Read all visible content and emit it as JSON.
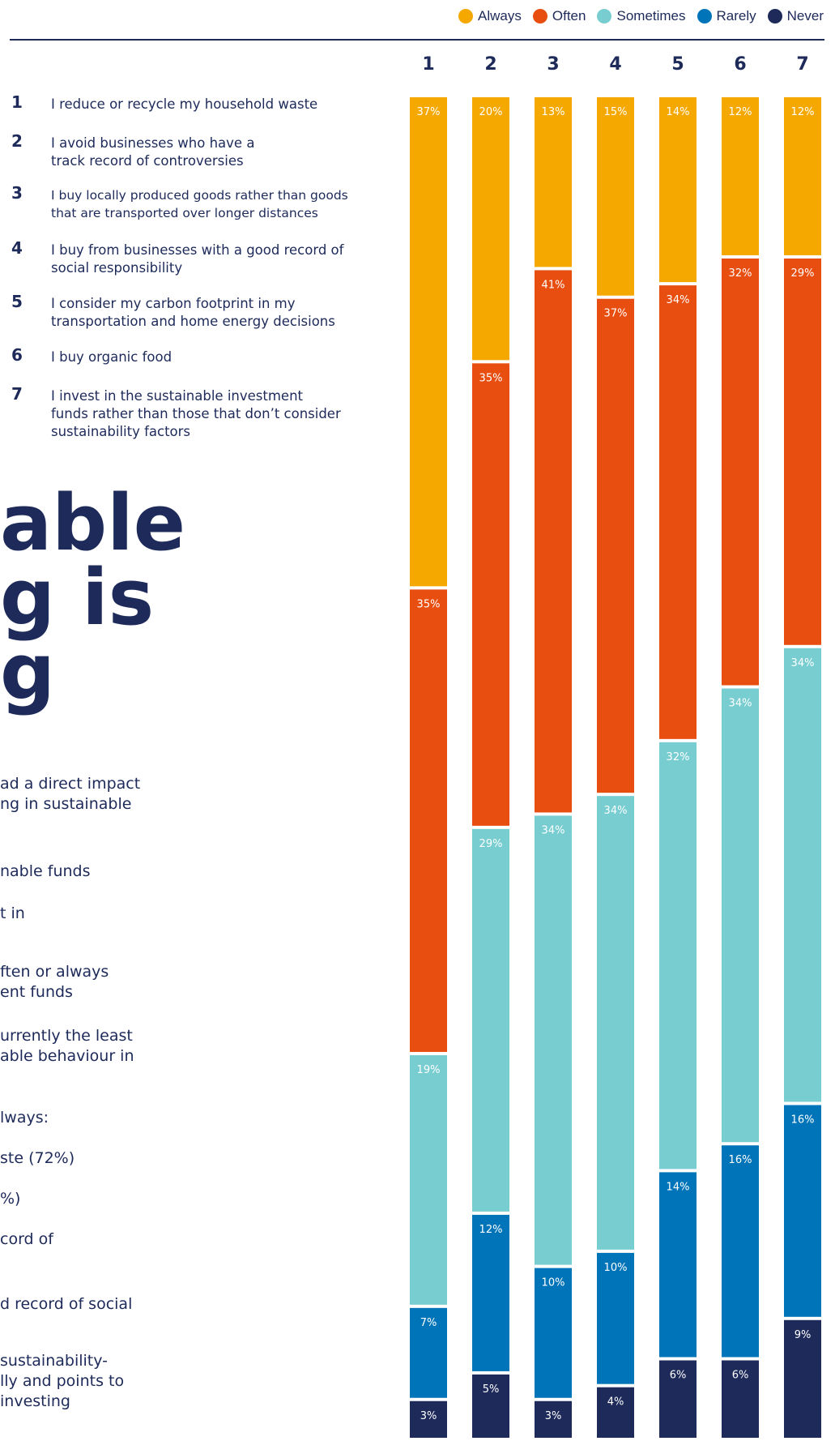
{
  "legend": [
    {
      "label": "Always",
      "color": "#f5a800"
    },
    {
      "label": "Often",
      "color": "#e84e0f"
    },
    {
      "label": "Sometimes",
      "color": "#78cdd1"
    },
    {
      "label": "Rarely",
      "color": "#0074b8"
    },
    {
      "label": "Never",
      "color": "#1d2a5a"
    }
  ],
  "statements": [
    {
      "num": "1",
      "text": "I reduce or recycle my household waste"
    },
    {
      "num": "2",
      "text": "I avoid businesses who have a\ntrack record of controversies"
    },
    {
      "num": "3",
      "text": "I buy locally produced goods rather than goods\nthat are transported over longer distances"
    },
    {
      "num": "4",
      "text": "I buy from businesses with a good record of\nsocial responsibility"
    },
    {
      "num": "5",
      "text": "I consider my carbon footprint in my\ntransportation and home energy decisions"
    },
    {
      "num": "6",
      "text": "I buy organic food"
    },
    {
      "num": "7",
      "text": "I invest in the sustainable investment\nfunds rather than those that don’t consider\nsustainability factors"
    }
  ],
  "headline": "able\ng is\ng",
  "body_lines": [
    "ad a direct impact\nng in sustainable",
    "nable funds",
    "t in",
    "ften or always\nent funds",
    "urrently the least\nable behaviour in",
    "lways:",
    "ste (72%)",
    "%)",
    "cord of",
    "d record of social",
    "sustainability-\nlly and points to\ninvesting"
  ],
  "chart_data": {
    "type": "bar",
    "stacked": true,
    "orientation": "vertical",
    "categories": [
      "1",
      "2",
      "3",
      "4",
      "5",
      "6",
      "7"
    ],
    "series": [
      {
        "name": "Always",
        "color": "#f5a800",
        "values": [
          37,
          20,
          13,
          15,
          14,
          12,
          12
        ]
      },
      {
        "name": "Often",
        "color": "#e84e0f",
        "values": [
          35,
          35,
          41,
          37,
          34,
          32,
          29
        ]
      },
      {
        "name": "Sometimes",
        "color": "#78cdd1",
        "values": [
          19,
          29,
          34,
          34,
          32,
          34,
          34
        ]
      },
      {
        "name": "Rarely",
        "color": "#0074b8",
        "values": [
          7,
          12,
          10,
          10,
          14,
          16,
          16
        ]
      },
      {
        "name": "Never",
        "color": "#1d2a5a",
        "values": [
          3,
          5,
          3,
          4,
          6,
          6,
          9
        ]
      }
    ],
    "value_suffix": "%",
    "legend_position": "top-right"
  }
}
